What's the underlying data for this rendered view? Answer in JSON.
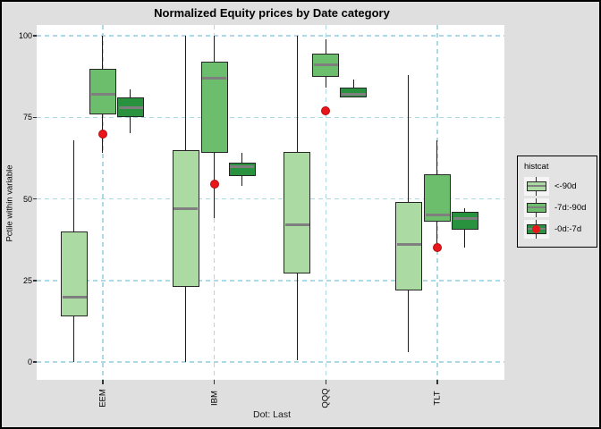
{
  "title": "Normalized Equity prices by Date category",
  "caption": "Dot: Last",
  "y_axis": {
    "title": "Pctile within variable",
    "ticks": [
      100,
      75,
      50,
      25,
      0
    ],
    "range": [
      0,
      100
    ]
  },
  "x_axis": {
    "categories": [
      "EEM",
      "IBM",
      "QQQ",
      "TLT"
    ]
  },
  "legend": {
    "title": "histcat",
    "items": [
      {
        "label": "<-90d",
        "color": "#ABDBA3",
        "glyph": "boxplot"
      },
      {
        "label": "-7d:-90d",
        "color": "#6CBE6C",
        "glyph": "boxplot"
      },
      {
        "label": "-0d:-7d",
        "color": "#28923E",
        "glyph": "boxplot-with-red-dot"
      }
    ]
  },
  "colors": {
    "outer_bg": "#DFDFDF",
    "panel_bg": "#FFFFFF",
    "grid": "#ACD9E8",
    "light_green": "#ABDBA3",
    "mid_green": "#6CBE6C",
    "dark_green": "#28923E",
    "median_gray": "#7F7F7F",
    "box_border": "#262626",
    "whisker": "#1C1C1C",
    "dot_red": "#E9161B"
  },
  "chart_data": {
    "type": "boxplot",
    "title": "Normalized Equity prices by Date category",
    "ylabel": "Pctile within variable",
    "ylim": [
      0,
      100
    ],
    "grid": "dashed-lightblue-horizontal-and-vertical",
    "legend_position": "right",
    "categories": [
      "EEM",
      "IBM",
      "QQQ",
      "TLT"
    ],
    "series": [
      {
        "name": "<-90d",
        "color": "#ABDBA3",
        "boxes": [
          {
            "low": 0,
            "q1": 14,
            "median": 20,
            "q3": 40,
            "high": 68
          },
          {
            "low": 0,
            "q1": 23,
            "median": 47,
            "q3": 65,
            "high": 100
          },
          {
            "low": 0.5,
            "q1": 27,
            "median": 42,
            "q3": 64.5,
            "high": 100
          },
          {
            "low": 3,
            "q1": 22,
            "median": 36,
            "q3": 49,
            "high": 88
          }
        ]
      },
      {
        "name": "-7d:-90d",
        "color": "#6CBE6C",
        "boxes": [
          {
            "low": 64,
            "q1": 76,
            "median": 82,
            "q3": 90,
            "high": 100
          },
          {
            "low": 44,
            "q1": 64,
            "median": 87,
            "q3": 92,
            "high": 100
          },
          {
            "low": 84,
            "q1": 87.5,
            "median": 91,
            "q3": 94.5,
            "high": 99
          },
          {
            "low": 36.5,
            "q1": 43,
            "median": 45,
            "q3": 57.5,
            "high": 68
          }
        ]
      },
      {
        "name": "-0d:-7d",
        "color": "#28923E",
        "boxes": [
          {
            "low": 70,
            "q1": 75,
            "median": 78,
            "q3": 81,
            "high": 83.5
          },
          {
            "low": 54,
            "q1": 57,
            "median": 60,
            "q3": 61,
            "high": 64
          },
          {
            "low": 81,
            "q1": 81,
            "median": 82,
            "q3": 84,
            "high": 86.5
          },
          {
            "low": 35,
            "q1": 40.5,
            "median": 44,
            "q3": 46,
            "high": 47
          }
        ]
      }
    ],
    "points": {
      "name": "Last",
      "color": "#E9161B",
      "values": [
        70,
        54.5,
        77,
        35
      ]
    }
  }
}
